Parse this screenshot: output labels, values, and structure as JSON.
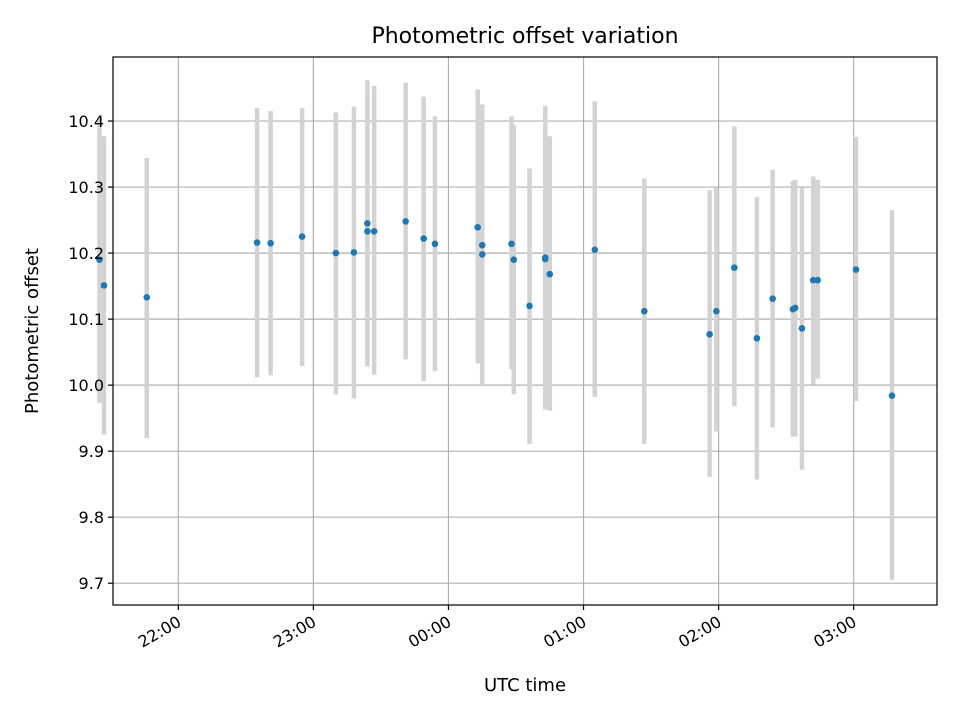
{
  "chart_data": {
    "type": "scatter",
    "title": "Photometric offset variation",
    "xlabel": "UTC time",
    "ylabel": "Photometric offset",
    "x_axis_type": "time",
    "xlim": [
      "21:31",
      "03:37"
    ],
    "ylim": [
      9.667,
      10.497
    ],
    "grid": true,
    "x_ticks": [
      "22:00",
      "23:00",
      "00:00",
      "01:00",
      "02:00",
      "03:00"
    ],
    "y_ticks": [
      "9.7",
      "9.8",
      "9.9",
      "10.0",
      "10.1",
      "10.2",
      "10.3",
      "10.4"
    ],
    "colors": {
      "marker": "#1f77b4",
      "errorbar": "#d3d3d3",
      "grid": "#b0b0b0"
    },
    "series": [
      {
        "points": [
          {
            "x": "21:25",
            "y": 10.19,
            "ylow": 9.973,
            "yhigh": 10.405
          },
          {
            "x": "21:27",
            "y": 10.151,
            "ylow": 9.925,
            "yhigh": 10.377
          },
          {
            "x": "21:46",
            "y": 10.133,
            "ylow": 9.92,
            "yhigh": 10.344
          },
          {
            "x": "22:35",
            "y": 10.216,
            "ylow": 10.012,
            "yhigh": 10.42
          },
          {
            "x": "22:41",
            "y": 10.215,
            "ylow": 10.015,
            "yhigh": 10.415
          },
          {
            "x": "22:55",
            "y": 10.225,
            "ylow": 10.029,
            "yhigh": 10.42
          },
          {
            "x": "23:10",
            "y": 10.2,
            "ylow": 9.986,
            "yhigh": 10.413
          },
          {
            "x": "23:18",
            "y": 10.201,
            "ylow": 9.98,
            "yhigh": 10.422
          },
          {
            "x": "23:24",
            "y": 10.245,
            "ylow": 10.028,
            "yhigh": 10.462
          },
          {
            "x": "23:24",
            "y": 10.233,
            "ylow": 10.04,
            "yhigh": 10.445
          },
          {
            "x": "23:27",
            "y": 10.233,
            "ylow": 10.016,
            "yhigh": 10.453
          },
          {
            "x": "23:41",
            "y": 10.248,
            "ylow": 10.039,
            "yhigh": 10.458
          },
          {
            "x": "23:49",
            "y": 10.222,
            "ylow": 10.006,
            "yhigh": 10.437
          },
          {
            "x": "23:54",
            "y": 10.214,
            "ylow": 10.021,
            "yhigh": 10.407
          },
          {
            "x": "00:13",
            "y": 10.239,
            "ylow": 10.033,
            "yhigh": 10.448
          },
          {
            "x": "00:15",
            "y": 10.212,
            "ylow": 10.0,
            "yhigh": 10.425
          },
          {
            "x": "00:15",
            "y": 10.198,
            "ylow": 10.0,
            "yhigh": 10.425
          },
          {
            "x": "00:28",
            "y": 10.214,
            "ylow": 10.024,
            "yhigh": 10.407
          },
          {
            "x": "00:29",
            "y": 10.19,
            "ylow": 9.986,
            "yhigh": 10.394
          },
          {
            "x": "00:36",
            "y": 10.12,
            "ylow": 9.911,
            "yhigh": 10.328
          },
          {
            "x": "00:43",
            "y": 10.193,
            "ylow": 9.963,
            "yhigh": 10.423
          },
          {
            "x": "00:43",
            "y": 10.191,
            "ylow": 9.963,
            "yhigh": 10.423
          },
          {
            "x": "00:45",
            "y": 10.168,
            "ylow": 9.961,
            "yhigh": 10.377
          },
          {
            "x": "01:05",
            "y": 10.205,
            "ylow": 9.982,
            "yhigh": 10.43
          },
          {
            "x": "01:27",
            "y": 10.112,
            "ylow": 9.911,
            "yhigh": 10.313
          },
          {
            "x": "01:56",
            "y": 10.077,
            "ylow": 9.861,
            "yhigh": 10.295
          },
          {
            "x": "01:59",
            "y": 10.112,
            "ylow": 9.93,
            "yhigh": 10.299
          },
          {
            "x": "02:07",
            "y": 10.178,
            "ylow": 9.968,
            "yhigh": 10.392
          },
          {
            "x": "02:17",
            "y": 10.071,
            "ylow": 9.857,
            "yhigh": 10.285
          },
          {
            "x": "02:24",
            "y": 10.131,
            "ylow": 9.936,
            "yhigh": 10.326
          },
          {
            "x": "02:33",
            "y": 10.115,
            "ylow": 9.922,
            "yhigh": 10.309
          },
          {
            "x": "02:34",
            "y": 10.117,
            "ylow": 9.922,
            "yhigh": 10.311
          },
          {
            "x": "02:37",
            "y": 10.086,
            "ylow": 9.872,
            "yhigh": 10.3
          },
          {
            "x": "02:42",
            "y": 10.159,
            "ylow": 10.001,
            "yhigh": 10.316
          },
          {
            "x": "02:44",
            "y": 10.159,
            "ylow": 10.01,
            "yhigh": 10.311
          },
          {
            "x": "03:01",
            "y": 10.175,
            "ylow": 9.976,
            "yhigh": 10.376
          },
          {
            "x": "03:17",
            "y": 9.984,
            "ylow": 9.705,
            "yhigh": 10.265
          }
        ]
      }
    ]
  }
}
